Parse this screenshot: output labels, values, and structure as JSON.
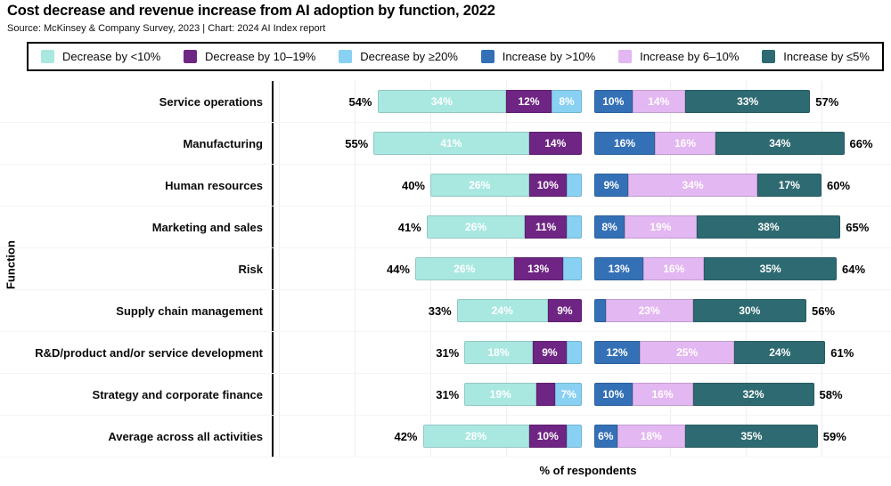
{
  "header": {
    "title": "Cost decrease and revenue increase from AI adoption by function, 2022",
    "source": "Source: McKinsey & Company Survey, 2023 | Chart: 2024 AI Index report"
  },
  "colors": {
    "decrease_lt10": "#a9e8e1",
    "decrease_10_19": "#6f2583",
    "decrease_ge20": "#88d1f3",
    "increase_gt10": "#3470b5",
    "increase_6_10": "#e3b7f1",
    "increase_le5": "#2e6a71"
  },
  "legend": {
    "items": [
      {
        "key": "decrease_lt10",
        "label": "Decrease by <10%"
      },
      {
        "key": "decrease_10_19",
        "label": "Decrease by 10–19%"
      },
      {
        "key": "decrease_ge20",
        "label": "Decrease by ≥20%"
      },
      {
        "key": "increase_gt10",
        "label": "Increase by >10%"
      },
      {
        "key": "increase_6_10",
        "label": "Increase by 6–10%"
      },
      {
        "key": "increase_le5",
        "label": "Increase by ≤5%"
      }
    ]
  },
  "axis": {
    "y_label": "Function",
    "x_label": "% of respondents",
    "unit": "%",
    "grid": "faint vertical lines every 20%",
    "legend_position": "top"
  },
  "chart_data": {
    "type": "bar",
    "variant": "horizontal-diverging-stacked",
    "title": "Cost decrease and revenue increase from AI adoption by function, 2022",
    "xlabel": "% of respondents",
    "ylabel": "Function",
    "left_group": "Cost decrease",
    "right_group": "Revenue increase",
    "left_max": 55,
    "right_max": 66,
    "rows": [
      {
        "function": "Service operations",
        "decrease_total": 54,
        "decrease_total_label": "54%",
        "decrease_segments": [
          {
            "key": "decrease_lt10",
            "value": 34,
            "label": "34%"
          },
          {
            "key": "decrease_10_19",
            "value": 12,
            "label": "12%"
          },
          {
            "key": "decrease_ge20",
            "value": 8,
            "label": "8%"
          }
        ],
        "increase_total": 57,
        "increase_total_label": "57%",
        "increase_segments": [
          {
            "key": "increase_gt10",
            "value": 10,
            "label": "10%"
          },
          {
            "key": "increase_6_10",
            "value": 14,
            "label": "14%"
          },
          {
            "key": "increase_le5",
            "value": 33,
            "label": "33%"
          }
        ]
      },
      {
        "function": "Manufacturing",
        "decrease_total": 55,
        "decrease_total_label": "55%",
        "decrease_segments": [
          {
            "key": "decrease_lt10",
            "value": 41,
            "label": "41%"
          },
          {
            "key": "decrease_10_19",
            "value": 14,
            "label": "14%"
          }
        ],
        "increase_total": 66,
        "increase_total_label": "66%",
        "increase_segments": [
          {
            "key": "increase_gt10",
            "value": 16,
            "label": "16%"
          },
          {
            "key": "increase_6_10",
            "value": 16,
            "label": "16%"
          },
          {
            "key": "increase_le5",
            "value": 34,
            "label": "34%"
          }
        ]
      },
      {
        "function": "Human resources",
        "decrease_total": 40,
        "decrease_total_label": "40%",
        "decrease_segments": [
          {
            "key": "decrease_lt10",
            "value": 26,
            "label": "26%"
          },
          {
            "key": "decrease_10_19",
            "value": 10,
            "label": "10%"
          },
          {
            "key": "decrease_ge20",
            "value": 4,
            "label": ""
          }
        ],
        "increase_total": 60,
        "increase_total_label": "60%",
        "increase_segments": [
          {
            "key": "increase_gt10",
            "value": 9,
            "label": "9%"
          },
          {
            "key": "increase_6_10",
            "value": 34,
            "label": "34%"
          },
          {
            "key": "increase_le5",
            "value": 17,
            "label": "17%"
          }
        ]
      },
      {
        "function": "Marketing and sales",
        "decrease_total": 41,
        "decrease_total_label": "41%",
        "decrease_segments": [
          {
            "key": "decrease_lt10",
            "value": 26,
            "label": "26%"
          },
          {
            "key": "decrease_10_19",
            "value": 11,
            "label": "11%"
          },
          {
            "key": "decrease_ge20",
            "value": 4,
            "label": ""
          }
        ],
        "increase_total": 65,
        "increase_total_label": "65%",
        "increase_segments": [
          {
            "key": "increase_gt10",
            "value": 8,
            "label": "8%"
          },
          {
            "key": "increase_6_10",
            "value": 19,
            "label": "19%"
          },
          {
            "key": "increase_le5",
            "value": 38,
            "label": "38%"
          }
        ]
      },
      {
        "function": "Risk",
        "decrease_total": 44,
        "decrease_total_label": "44%",
        "decrease_segments": [
          {
            "key": "decrease_lt10",
            "value": 26,
            "label": "26%"
          },
          {
            "key": "decrease_10_19",
            "value": 13,
            "label": "13%"
          },
          {
            "key": "decrease_ge20",
            "value": 5,
            "label": ""
          }
        ],
        "increase_total": 64,
        "increase_total_label": "64%",
        "increase_segments": [
          {
            "key": "increase_gt10",
            "value": 13,
            "label": "13%"
          },
          {
            "key": "increase_6_10",
            "value": 16,
            "label": "16%"
          },
          {
            "key": "increase_le5",
            "value": 35,
            "label": "35%"
          }
        ]
      },
      {
        "function": "Supply chain management",
        "decrease_total": 33,
        "decrease_total_label": "33%",
        "decrease_segments": [
          {
            "key": "decrease_lt10",
            "value": 24,
            "label": "24%"
          },
          {
            "key": "decrease_10_19",
            "value": 9,
            "label": "9%"
          }
        ],
        "increase_total": 56,
        "increase_total_label": "56%",
        "increase_segments": [
          {
            "key": "increase_gt10",
            "value": 3,
            "label": ""
          },
          {
            "key": "increase_6_10",
            "value": 23,
            "label": "23%"
          },
          {
            "key": "increase_le5",
            "value": 30,
            "label": "30%"
          }
        ]
      },
      {
        "function": "R&D/product and/or service development",
        "decrease_total": 31,
        "decrease_total_label": "31%",
        "decrease_segments": [
          {
            "key": "decrease_lt10",
            "value": 18,
            "label": "18%"
          },
          {
            "key": "decrease_10_19",
            "value": 9,
            "label": "9%"
          },
          {
            "key": "decrease_ge20",
            "value": 4,
            "label": ""
          }
        ],
        "increase_total": 61,
        "increase_total_label": "61%",
        "increase_segments": [
          {
            "key": "increase_gt10",
            "value": 12,
            "label": "12%"
          },
          {
            "key": "increase_6_10",
            "value": 25,
            "label": "25%"
          },
          {
            "key": "increase_le5",
            "value": 24,
            "label": "24%"
          }
        ]
      },
      {
        "function": "Strategy and corporate finance",
        "decrease_total": 31,
        "decrease_total_label": "31%",
        "decrease_segments": [
          {
            "key": "decrease_lt10",
            "value": 19,
            "label": "19%"
          },
          {
            "key": "decrease_10_19",
            "value": 5,
            "label": ""
          },
          {
            "key": "decrease_ge20",
            "value": 7,
            "label": "7%"
          }
        ],
        "increase_total": 58,
        "increase_total_label": "58%",
        "increase_segments": [
          {
            "key": "increase_gt10",
            "value": 10,
            "label": "10%"
          },
          {
            "key": "increase_6_10",
            "value": 16,
            "label": "16%"
          },
          {
            "key": "increase_le5",
            "value": 32,
            "label": "32%"
          }
        ]
      },
      {
        "function": "Average across all activities",
        "decrease_total": 42,
        "decrease_total_label": "42%",
        "decrease_segments": [
          {
            "key": "decrease_lt10",
            "value": 28,
            "label": "28%"
          },
          {
            "key": "decrease_10_19",
            "value": 10,
            "label": "10%"
          },
          {
            "key": "decrease_ge20",
            "value": 4,
            "label": ""
          }
        ],
        "increase_total": 59,
        "increase_total_label": "59%",
        "increase_segments": [
          {
            "key": "increase_gt10",
            "value": 6,
            "label": "6%"
          },
          {
            "key": "increase_6_10",
            "value": 18,
            "label": "18%"
          },
          {
            "key": "increase_le5",
            "value": 35,
            "label": "35%"
          }
        ]
      }
    ]
  }
}
